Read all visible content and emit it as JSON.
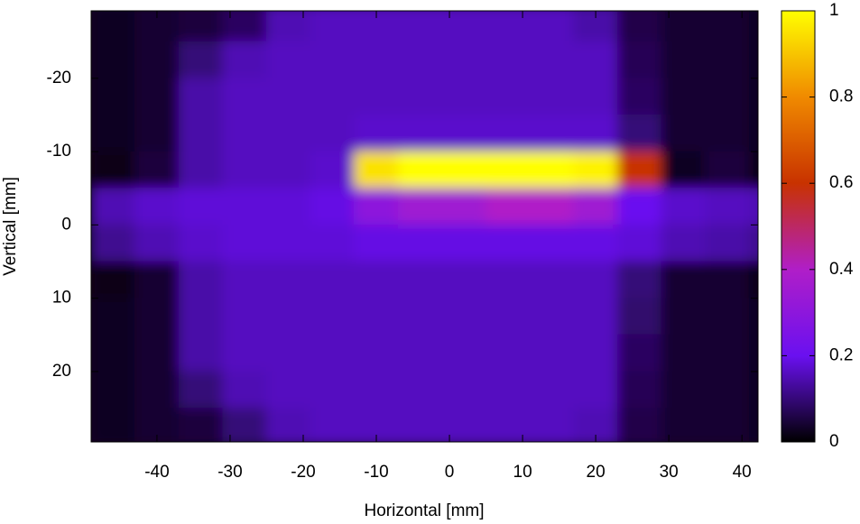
{
  "chart_data": {
    "type": "heatmap",
    "xlabel": "Horizontal [mm]",
    "ylabel": "Vertical [mm]",
    "x": [
      -46,
      -40,
      -34,
      -28,
      -22,
      -16,
      -10,
      -4,
      2,
      8,
      14,
      20,
      26,
      32,
      38,
      44
    ],
    "y": [
      -27.5,
      -22.5,
      -17.5,
      -12.5,
      -7.5,
      -2.5,
      2.5,
      7.5,
      12.5,
      17.5,
      22.5,
      27.5
    ],
    "z": [
      [
        0.03,
        0.04,
        0.05,
        0.08,
        0.15,
        0.16,
        0.16,
        0.16,
        0.16,
        0.16,
        0.16,
        0.14,
        0.06,
        0.04,
        0.04,
        0.03
      ],
      [
        0.03,
        0.04,
        0.1,
        0.15,
        0.16,
        0.16,
        0.16,
        0.16,
        0.16,
        0.16,
        0.16,
        0.16,
        0.07,
        0.04,
        0.04,
        0.03
      ],
      [
        0.03,
        0.04,
        0.14,
        0.16,
        0.16,
        0.16,
        0.16,
        0.16,
        0.16,
        0.16,
        0.16,
        0.16,
        0.08,
        0.04,
        0.04,
        0.03
      ],
      [
        0.03,
        0.04,
        0.14,
        0.16,
        0.16,
        0.16,
        0.17,
        0.17,
        0.17,
        0.17,
        0.17,
        0.17,
        0.1,
        0.04,
        0.04,
        0.03
      ],
      [
        0.02,
        0.05,
        0.14,
        0.16,
        0.16,
        0.17,
        0.95,
        1,
        1,
        1,
        1,
        0.98,
        0.6,
        0.03,
        0.05,
        0.02
      ],
      [
        0.15,
        0.17,
        0.18,
        0.18,
        0.18,
        0.19,
        0.3,
        0.35,
        0.35,
        0.4,
        0.4,
        0.35,
        0.2,
        0.17,
        0.16,
        0.15
      ],
      [
        0.12,
        0.15,
        0.17,
        0.18,
        0.18,
        0.18,
        0.19,
        0.19,
        0.19,
        0.19,
        0.19,
        0.19,
        0.18,
        0.15,
        0.14,
        0.12
      ],
      [
        0.02,
        0.04,
        0.14,
        0.16,
        0.16,
        0.16,
        0.16,
        0.16,
        0.16,
        0.16,
        0.16,
        0.16,
        0.1,
        0.04,
        0.04,
        0.02
      ],
      [
        0.03,
        0.04,
        0.14,
        0.16,
        0.16,
        0.16,
        0.16,
        0.16,
        0.16,
        0.16,
        0.16,
        0.16,
        0.09,
        0.04,
        0.04,
        0.03
      ],
      [
        0.03,
        0.04,
        0.14,
        0.16,
        0.16,
        0.16,
        0.16,
        0.16,
        0.16,
        0.16,
        0.16,
        0.16,
        0.08,
        0.04,
        0.04,
        0.03
      ],
      [
        0.03,
        0.04,
        0.1,
        0.15,
        0.16,
        0.16,
        0.16,
        0.16,
        0.16,
        0.16,
        0.16,
        0.16,
        0.07,
        0.04,
        0.04,
        0.03
      ],
      [
        0.03,
        0.04,
        0.05,
        0.1,
        0.15,
        0.16,
        0.16,
        0.16,
        0.16,
        0.16,
        0.16,
        0.15,
        0.06,
        0.04,
        0.04,
        0.03
      ]
    ],
    "xlim": [
      -49,
      42.2
    ],
    "ylim": [
      29.6,
      -29.2
    ],
    "xticks": [
      -40,
      -30,
      -20,
      -10,
      0,
      10,
      20,
      30,
      40
    ],
    "yticks": [
      -20,
      -10,
      0,
      10,
      20
    ],
    "zlim": [
      0,
      1
    ],
    "zticks": [
      0,
      0.2,
      0.4,
      0.6,
      0.8,
      1
    ],
    "colormap": [
      "#000000",
      "#6a10f0",
      "#b01ec8",
      "#c83200",
      "#f08a00",
      "#ffff00"
    ]
  }
}
